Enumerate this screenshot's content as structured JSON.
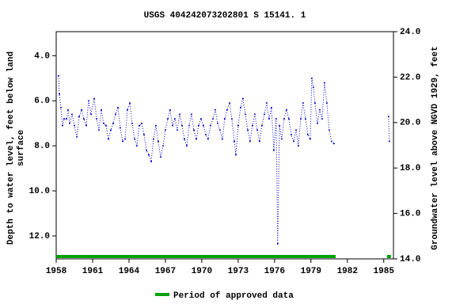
{
  "chart_data": {
    "type": "line",
    "title": "USGS 404242073202801 S 15141. 1",
    "ylabel": [
      "Depth to water level, feet below land",
      "surface"
    ],
    "y2label": "Groundwater level above NGVD 1929, feet",
    "xlim": [
      1958,
      1985.8
    ],
    "xticks": [
      1958,
      1961,
      1964,
      1967,
      1970,
      1973,
      1976,
      1979,
      1982,
      1985
    ],
    "ylim": [
      13.02,
      2.93
    ],
    "yticks": [
      {
        "value": 4,
        "label": "4.0"
      },
      {
        "value": 6,
        "label": "6.0"
      },
      {
        "value": 8,
        "label": "8.0"
      },
      {
        "value": 10,
        "label": "10.0"
      },
      {
        "value": 12,
        "label": "12.0"
      }
    ],
    "y2lim": [
      14.0,
      24.0
    ],
    "y2ticks": [
      {
        "value": 14,
        "label": "14.0"
      },
      {
        "value": 16,
        "label": "16.0"
      },
      {
        "value": 18,
        "label": "18.0"
      },
      {
        "value": 20,
        "label": "20.0"
      },
      {
        "value": 22,
        "label": "22.0"
      },
      {
        "value": 24,
        "label": "24.0"
      }
    ],
    "series": [
      {
        "color": "#0000cc",
        "x": [
          1958.2,
          1958.26,
          1958.39,
          1958.52,
          1958.65,
          1958.85,
          1958.98,
          1959.11,
          1959.3,
          1959.5,
          1959.7,
          1959.89,
          1960.09,
          1960.28,
          1960.48,
          1960.67,
          1960.87,
          1961.13,
          1961.33,
          1961.52,
          1961.72,
          1961.91,
          1962.11,
          1962.31,
          1962.5,
          1962.7,
          1962.89,
          1963.09,
          1963.28,
          1963.48,
          1963.68,
          1963.87,
          1964.07,
          1964.26,
          1964.46,
          1964.65,
          1964.85,
          1965.05,
          1965.24,
          1965.44,
          1965.63,
          1965.83,
          1966.02,
          1966.22,
          1966.41,
          1966.61,
          1966.81,
          1967.0,
          1967.2,
          1967.39,
          1967.59,
          1967.78,
          1967.98,
          1968.18,
          1968.37,
          1968.57,
          1968.76,
          1968.96,
          1969.15,
          1969.35,
          1969.55,
          1969.74,
          1969.94,
          1970.13,
          1970.33,
          1970.52,
          1970.72,
          1970.92,
          1971.11,
          1971.31,
          1971.5,
          1971.7,
          1971.89,
          1972.09,
          1972.29,
          1972.48,
          1972.68,
          1972.81,
          1973.0,
          1973.2,
          1973.39,
          1973.59,
          1973.79,
          1973.98,
          1974.18,
          1974.37,
          1974.57,
          1974.76,
          1974.96,
          1975.16,
          1975.35,
          1975.55,
          1975.74,
          1975.94,
          1976.13,
          1976.26,
          1976.4,
          1976.59,
          1976.79,
          1976.98,
          1977.18,
          1977.37,
          1977.57,
          1977.77,
          1977.96,
          1978.16,
          1978.35,
          1978.55,
          1978.74,
          1978.94,
          1979.07,
          1979.2,
          1979.33,
          1979.53,
          1979.72,
          1979.92,
          1980.11,
          1980.31,
          1980.5,
          1980.7,
          1980.9,
          1983.0,
          1985.4,
          1985.46
        ],
        "values": [
          4.9,
          5.7,
          6.3,
          7.1,
          6.8,
          6.8,
          6.4,
          7.0,
          6.6,
          7.1,
          7.6,
          6.7,
          6.4,
          6.8,
          7.1,
          6.0,
          6.6,
          5.9,
          6.8,
          7.3,
          6.4,
          7.0,
          7.1,
          7.7,
          7.3,
          7.0,
          6.6,
          6.3,
          7.2,
          7.8,
          7.7,
          6.4,
          6.1,
          7.0,
          7.7,
          8.0,
          7.1,
          7.0,
          7.5,
          8.2,
          8.4,
          8.7,
          7.7,
          7.1,
          7.8,
          8.5,
          8.0,
          7.3,
          6.8,
          6.4,
          7.1,
          6.8,
          7.3,
          6.6,
          7.1,
          7.7,
          8.0,
          7.1,
          6.6,
          7.3,
          7.7,
          7.1,
          6.8,
          7.1,
          7.5,
          7.7,
          7.1,
          6.8,
          6.4,
          7.0,
          7.3,
          7.7,
          6.8,
          6.4,
          6.1,
          6.8,
          7.8,
          8.4,
          7.1,
          6.3,
          5.9,
          6.6,
          7.3,
          7.8,
          7.1,
          6.6,
          7.3,
          7.8,
          7.1,
          6.6,
          6.1,
          6.8,
          6.3,
          8.2,
          6.8,
          12.35,
          7.1,
          7.7,
          6.8,
          6.4,
          6.8,
          7.5,
          7.8,
          7.3,
          8.0,
          6.8,
          6.1,
          6.8,
          7.5,
          7.7,
          5.0,
          5.4,
          6.1,
          7.0,
          6.4,
          6.8,
          5.2,
          6.1,
          7.3,
          7.8,
          7.9,
          null,
          6.7,
          7.8
        ]
      }
    ],
    "approved": {
      "name": "Period of approved data",
      "color": "#00a000",
      "ranges": [
        [
          1958,
          1981.03
        ],
        [
          1985.27,
          1985.59
        ]
      ]
    }
  }
}
